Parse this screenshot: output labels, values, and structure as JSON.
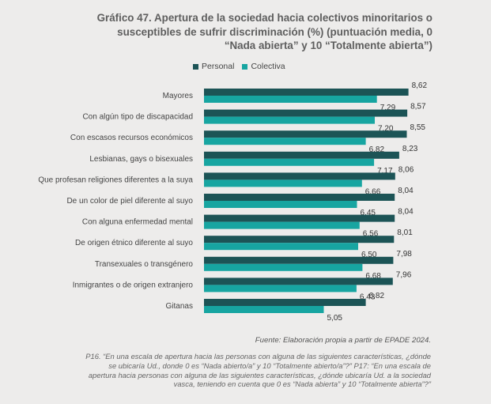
{
  "title": "Gráfico 47. Apertura de la sociedad hacia colectivos minoritarios o susceptibles de sufrir discriminación (%) (puntuación media, 0 “Nada abierta” y 10 “Totalmente abierta”)",
  "source": "Fuente: Elaboración propia a partir de EPADE 2024.",
  "note": "P16. “En una escala de apertura hacia las personas con alguna de las siguientes características, ¿dónde se ubicaría Ud., donde 0 es “Nada abierto/a” y 10 “Totalmente abierto/a”?” P17: “En una escala de apertura hacia personas con alguna de las siguientes características, ¿dónde ubicaría Ud. a la sociedad vasca, teniendo en cuenta que 0 es “Nada abierta” y 10 “Totalmente abierta”?”",
  "colors": {
    "personal": "#1c5456",
    "colectiva": "#17a5a1",
    "background": "#edeceb"
  },
  "chart_data": {
    "type": "bar",
    "orientation": "horizontal",
    "categories": [
      "Mayores",
      "Con algún tipo de discapacidad",
      "Con escasos recursos económicos",
      "Lesbianas, gays o bisexuales",
      "Que profesan religiones diferentes a la suya",
      "De un color de piel diferente al suyo",
      "Con alguna enfermedad mental",
      "De origen étnico diferente al suyo",
      "Transexuales o transgénero",
      "Inmigrantes o de origen extranjero",
      "Gitanas"
    ],
    "series": [
      {
        "name": "Personal",
        "values": [
          8.62,
          8.57,
          8.55,
          8.23,
          8.06,
          8.04,
          8.04,
          8.01,
          7.98,
          7.96,
          6.82
        ],
        "labels": [
          "8,62",
          "8,57",
          "8,55",
          "8,23",
          "8,06",
          "8,04",
          "8,04",
          "8,01",
          "7,98",
          "7,96",
          "6,82"
        ]
      },
      {
        "name": "Colectiva",
        "values": [
          7.29,
          7.2,
          6.82,
          7.17,
          6.66,
          6.45,
          6.56,
          6.5,
          6.68,
          6.43,
          5.05
        ],
        "labels": [
          "7,29",
          "7,20",
          "6,82",
          "7,17",
          "6,66",
          "6,45",
          "6,56",
          "6,50",
          "6,68",
          "6,43",
          "5,05"
        ]
      }
    ],
    "xlim": [
      0,
      10
    ],
    "grid": false,
    "legend": "top-left"
  }
}
